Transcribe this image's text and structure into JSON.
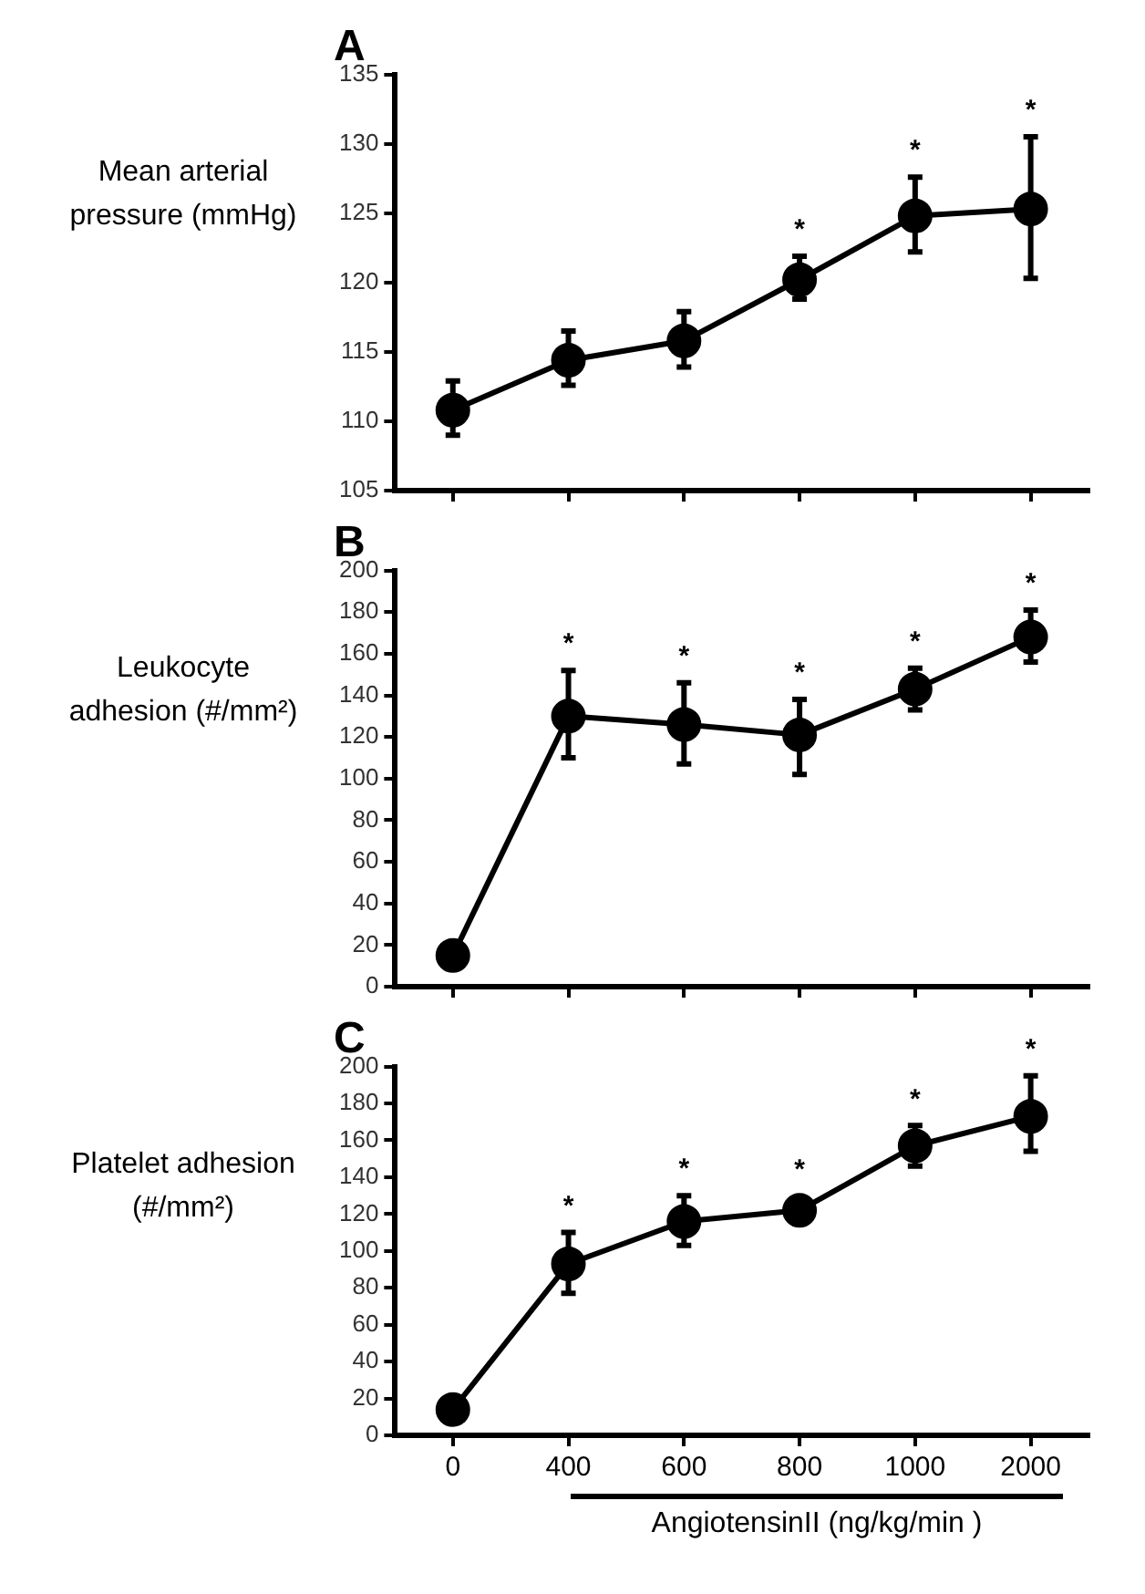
{
  "chart_data": [
    {
      "type": "line",
      "title": "A",
      "ylabel": "Mean arterial pressure (mmHg)",
      "categories": [
        "0",
        "400",
        "600",
        "800",
        "1000",
        "2000"
      ],
      "series": [
        {
          "color": "#000000",
          "values": [
            110.8,
            114.4,
            115.8,
            120.2,
            124.8,
            125.3
          ],
          "errors": [
            [
              109.0,
              112.9
            ],
            [
              112.6,
              116.5
            ],
            [
              113.9,
              117.9
            ],
            [
              118.8,
              121.9
            ],
            [
              122.2,
              127.6
            ],
            [
              120.3,
              130.5
            ]
          ]
        }
      ],
      "ylim": [
        105,
        135
      ],
      "yticks": [
        105,
        110,
        115,
        120,
        125,
        130,
        135
      ],
      "marker": "circle",
      "tick_labels": "y",
      "grid": false,
      "legend": false,
      "annotations": [
        "*",
        "*",
        "*"
      ]
    },
    {
      "type": "line",
      "title": "B",
      "ylabel": "Leukocyte adhesion (#/mm²)",
      "categories": [
        "0",
        "400",
        "600",
        "800",
        "1000",
        "2000"
      ],
      "series": [
        {
          "color": "#000000",
          "values": [
            15,
            130,
            126,
            121,
            143,
            168
          ],
          "errors": [
            null,
            [
              110,
              152
            ],
            [
              107,
              146
            ],
            [
              102,
              138
            ],
            [
              133,
              153
            ],
            [
              156,
              181
            ]
          ]
        }
      ],
      "ylim": [
        0,
        200
      ],
      "yticks": [
        0,
        20,
        40,
        60,
        80,
        100,
        120,
        140,
        160,
        180,
        200
      ],
      "marker": "circle",
      "tick_labels": "y",
      "grid": false,
      "legend": false,
      "annotations": [
        "*",
        "*",
        "*",
        "*",
        "*"
      ]
    },
    {
      "type": "line",
      "title": "C",
      "ylabel": "Platelet adhesion (#/mm²)",
      "xlabel": "AngiotensinII (ng/kg/min )",
      "categories": [
        "0",
        "400",
        "600",
        "800",
        "1000",
        "2000"
      ],
      "series": [
        {
          "color": "#000000",
          "values": [
            14,
            93,
            116,
            122,
            157,
            173
          ],
          "errors": [
            null,
            [
              77,
              110
            ],
            [
              103,
              130
            ],
            [
              115,
              129
            ],
            [
              146,
              168
            ],
            [
              154,
              195
            ]
          ]
        }
      ],
      "ylim": [
        0,
        200
      ],
      "yticks": [
        0,
        20,
        40,
        60,
        80,
        100,
        120,
        140,
        160,
        180,
        200
      ],
      "marker": "circle",
      "grid": false,
      "legend": false,
      "annotations": [
        "*",
        "*",
        "*",
        "*",
        "*"
      ]
    }
  ]
}
